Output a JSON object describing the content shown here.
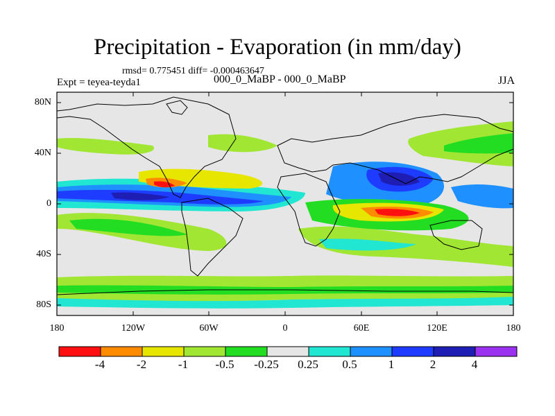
{
  "title": "Precipitation - Evaporation (in mm/day)",
  "stats": "rmsd= 0.775451  diff= -0.000463647",
  "experiment": "Expt = teyea-teyda1",
  "period": "000_0_MaBP - 000_0_MaBP",
  "season": "JJA",
  "lat_ticks": [
    "80N",
    "40N",
    "0",
    "40S",
    "80S"
  ],
  "lon_ticks": [
    "180",
    "120W",
    "60W",
    "0",
    "60E",
    "120E",
    "180"
  ],
  "colorbar": {
    "labels": [
      "-4",
      "-2",
      "-1",
      "-0.5",
      "-0.25",
      "0.25",
      "0.5",
      "1",
      "2",
      "4"
    ],
    "colors": [
      "#ff1010",
      "#ff8c00",
      "#e6e600",
      "#a0e632",
      "#22dd22",
      "#e6e6e6",
      "#20e6d2",
      "#1e90ff",
      "#1e3cff",
      "#1e1eb4",
      "#9a32f0"
    ]
  }
}
